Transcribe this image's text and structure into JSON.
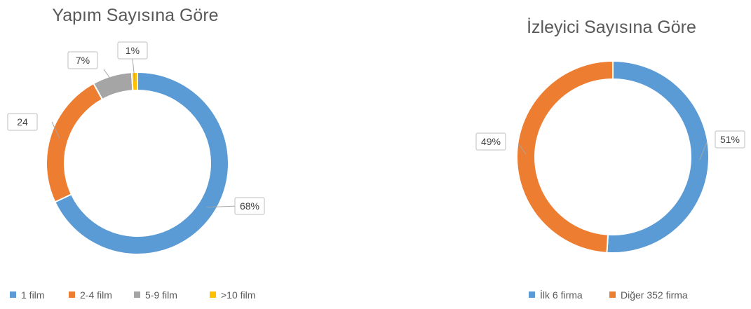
{
  "chart_data": [
    {
      "type": "pie",
      "title": "Yapım Sayısına Göre",
      "categories": [
        "1 film",
        "2-4 film",
        "5-9 film",
        ">10 film"
      ],
      "values": [
        68,
        24,
        7,
        1
      ],
      "value_labels": [
        "68%",
        "24",
        "7%",
        "1%"
      ],
      "colors": [
        "#5B9BD5",
        "#ED7D31",
        "#A5A5A5",
        "#FFC000"
      ],
      "donut": true,
      "legend": "bottom"
    },
    {
      "type": "pie",
      "title": "İzleyici Sayısına Göre",
      "categories": [
        "İlk 6 firma",
        "Diğer 352 firma"
      ],
      "values": [
        51,
        49
      ],
      "value_labels": [
        "51%",
        "49%"
      ],
      "colors": [
        "#5B9BD5",
        "#ED7D31"
      ],
      "donut": true,
      "legend": "bottom"
    }
  ]
}
